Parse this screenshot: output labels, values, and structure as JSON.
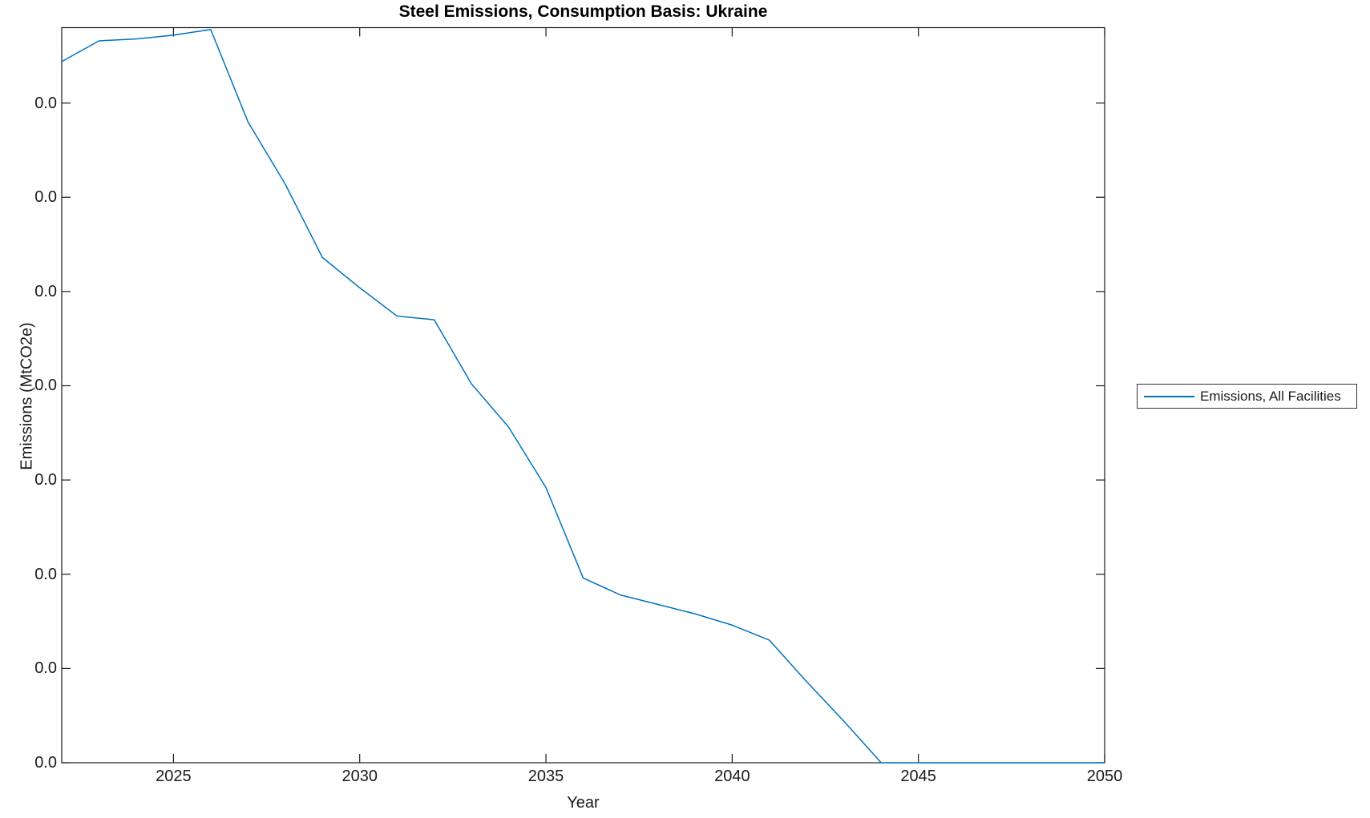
{
  "figure": {
    "background": "#ffffff",
    "axis_color": "#1a1a1a",
    "text_color": "#1a1a1a"
  },
  "chart_data": {
    "type": "line",
    "title": "Steel Emissions, Consumption Basis: Ukraine",
    "xlabel": "Year",
    "ylabel": "Emissions (MtCO2e)",
    "x": [
      2022,
      2023,
      2024,
      2025,
      2026,
      2027,
      2028,
      2029,
      2030,
      2031,
      2032,
      2033,
      2034,
      2035,
      2036,
      2037,
      2038,
      2039,
      2040,
      2041,
      2042,
      2043,
      2044,
      2045,
      2046,
      2047,
      2048,
      2049,
      2050
    ],
    "series": [
      {
        "name": "Emissions, All Facilities",
        "color": "#0072BD",
        "values": [
          0.0372,
          0.0383,
          0.0384,
          0.0386,
          0.0389,
          0.034,
          0.0307,
          0.0268,
          0.0252,
          0.0237,
          0.0235,
          0.0201,
          0.0178,
          0.0146,
          0.0098,
          0.0089,
          0.0084,
          0.0079,
          0.0073,
          0.0065,
          0.0043,
          0.0022,
          0.0,
          0.0,
          0.0,
          0.0,
          0.0,
          0.0,
          0.0
        ]
      }
    ],
    "xlim": [
      2022,
      2050
    ],
    "ylim": [
      0,
      0.039
    ],
    "xticks": [
      2025,
      2030,
      2035,
      2040,
      2045,
      2050
    ],
    "xtick_labels": [
      "2025",
      "2030",
      "2035",
      "2040",
      "2045",
      "2050"
    ],
    "yticks": [
      0,
      0.005,
      0.01,
      0.015,
      0.02,
      0.025,
      0.03,
      0.035
    ],
    "ytick_labels": [
      "0.0",
      "0.0",
      "0.0",
      "0.0",
      "0.0",
      "0.0",
      "0.0",
      "0.0"
    ],
    "grid": false,
    "box": true,
    "ticks_direction": "in",
    "legend": {
      "position": "outside-right",
      "entries": [
        "Emissions, All Facilities"
      ],
      "border_color": "#333333"
    }
  }
}
